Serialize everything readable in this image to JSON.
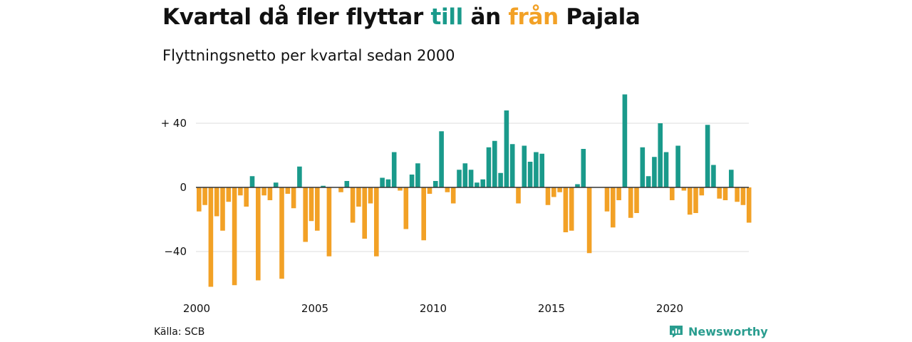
{
  "header": {
    "title_parts": [
      {
        "text": "Kvartal då fler flyttar ",
        "color": "#111111"
      },
      {
        "text": "till",
        "color": "#1a9a8b"
      },
      {
        "text": " än ",
        "color": "#111111"
      },
      {
        "text": "från",
        "color": "#f2a126"
      },
      {
        "text": " Pajala",
        "color": "#111111"
      }
    ],
    "subtitle": "Flyttningsnetto per kvartal sedan 2000"
  },
  "footer": {
    "source": "Källa: SCB",
    "brand": "Newsworthy",
    "brand_icon": "newsworthy-logo-icon"
  },
  "colors": {
    "positive": "#1a9a8b",
    "negative": "#f2a126",
    "grid": "#dddddd",
    "zero": "#333333"
  },
  "chart_data": {
    "type": "bar",
    "title": "Kvartal då fler flyttar till än från Pajala",
    "subtitle": "Flyttningsnetto per kvartal sedan 2000",
    "xlabel": "",
    "ylabel": "",
    "x_start": "2000-Q1",
    "x_ticks": [
      "2000",
      "2005",
      "2010",
      "2015",
      "2020"
    ],
    "y_ticks": [
      {
        "value": 40,
        "label": "+ 40"
      },
      {
        "value": 0,
        "label": "0"
      },
      {
        "value": -40,
        "label": "−40"
      }
    ],
    "ylim": [
      -62,
      58
    ],
    "grid": true,
    "values": [
      -15,
      -11,
      -62,
      -18,
      -27,
      -9,
      -61,
      -5,
      -12,
      7,
      -58,
      -5,
      -8,
      3,
      -57,
      -4,
      -13,
      13,
      -34,
      -21,
      -27,
      1,
      -43,
      0,
      -3,
      4,
      -22,
      -12,
      -32,
      -10,
      -43,
      6,
      5,
      22,
      -2,
      -26,
      8,
      15,
      -33,
      -4,
      4,
      35,
      -3,
      -10,
      11,
      15,
      11,
      3,
      5,
      25,
      29,
      9,
      48,
      27,
      -10,
      26,
      16,
      22,
      21,
      -11,
      -6,
      -3,
      -28,
      -27,
      2,
      24,
      -41,
      0,
      0,
      -15,
      -25,
      -8,
      58,
      -19,
      -16,
      25,
      7,
      19,
      40,
      22,
      -8,
      26,
      -2,
      -17,
      -16,
      -5,
      39,
      14,
      -7,
      -8,
      11,
      -9,
      -11,
      -22
    ]
  }
}
